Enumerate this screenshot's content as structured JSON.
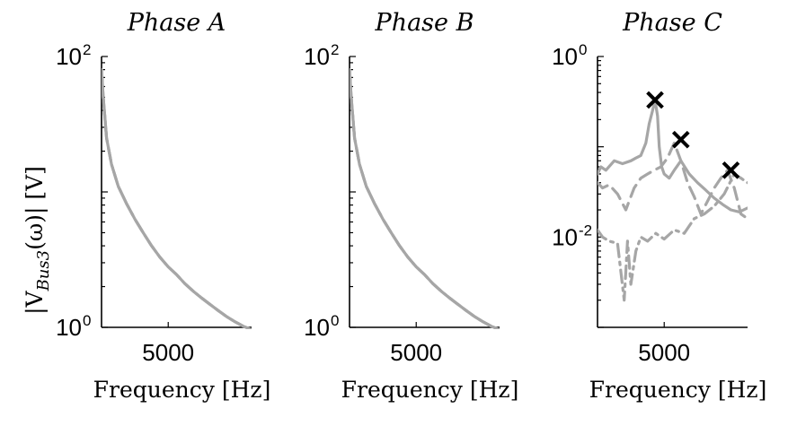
{
  "figure": {
    "ylabel_html": "|V<sub>Bus3</sub>(ω)| [V]",
    "ylabel_main": "|V",
    "ylabel_sub": "Bus3",
    "ylabel_tail": "(ω)|  [V]"
  },
  "colors": {
    "series": "#a6a6a6",
    "marker": "#000000"
  },
  "chart_data": [
    {
      "type": "line",
      "title": "Phase A",
      "xlabel": "Frequency [Hz]",
      "ylabel": "|V_Bus3(ω)| [V]",
      "yscale": "log",
      "xlim": [
        1000,
        10000
      ],
      "ylim": [
        1,
        100
      ],
      "xticks": [
        5000
      ],
      "xtick_labels": [
        "5000"
      ],
      "yticks": [
        1,
        100
      ],
      "ytick_labels": [
        {
          "base": "10",
          "exp": "0"
        },
        {
          "base": "10",
          "exp": "2"
        }
      ],
      "grid": false,
      "series": [
        {
          "style": "solid",
          "x": [
            1000,
            1100,
            1300,
            1600,
            2000,
            2500,
            3000,
            3500,
            4000,
            4500,
            5000,
            5500,
            6000,
            6500,
            7000,
            7500,
            8000,
            8500,
            9000,
            9500,
            10000
          ],
          "y": [
            80,
            50,
            25,
            16,
            11,
            8.2,
            6.3,
            5.0,
            4.0,
            3.3,
            2.8,
            2.45,
            2.1,
            1.85,
            1.65,
            1.48,
            1.33,
            1.2,
            1.1,
            1.02,
            0.96
          ]
        },
        {
          "style": "dashed",
          "x": [
            1000,
            1100,
            1300,
            1600,
            2000,
            2500,
            3000,
            3500,
            4000,
            4500,
            5000,
            5500,
            6000,
            6500,
            7000,
            7500,
            8000,
            8500,
            9000,
            9500,
            10000
          ],
          "y": [
            80,
            50,
            25,
            16,
            11,
            8.2,
            6.3,
            5.0,
            4.0,
            3.3,
            2.8,
            2.45,
            2.1,
            1.85,
            1.65,
            1.48,
            1.33,
            1.2,
            1.1,
            1.02,
            0.96
          ]
        },
        {
          "style": "dashdot",
          "x": [
            1000,
            1100,
            1300,
            1600,
            2000,
            2500,
            3000,
            3500,
            4000,
            4500,
            5000,
            5500,
            6000,
            6500,
            7000,
            7500,
            8000,
            8500,
            9000,
            9500,
            10000
          ],
          "y": [
            80,
            50,
            25,
            16,
            11,
            8.2,
            6.3,
            5.0,
            4.0,
            3.3,
            2.8,
            2.45,
            2.1,
            1.85,
            1.65,
            1.48,
            1.33,
            1.2,
            1.1,
            1.02,
            0.96
          ]
        }
      ],
      "markers": []
    },
    {
      "type": "line",
      "title": "Phase B",
      "xlabel": "Frequency [Hz]",
      "ylabel": "",
      "yscale": "log",
      "xlim": [
        1000,
        10000
      ],
      "ylim": [
        1,
        100
      ],
      "xticks": [
        5000
      ],
      "xtick_labels": [
        "5000"
      ],
      "yticks": [
        1,
        100
      ],
      "ytick_labels": [
        {
          "base": "10",
          "exp": "0"
        },
        {
          "base": "10",
          "exp": "2"
        }
      ],
      "grid": false,
      "series": [
        {
          "style": "solid",
          "x": [
            1000,
            1100,
            1300,
            1600,
            2000,
            2500,
            3000,
            3500,
            4000,
            4500,
            5000,
            5500,
            6000,
            6500,
            7000,
            7500,
            8000,
            8500,
            9000,
            9500,
            10000
          ],
          "y": [
            80,
            50,
            25,
            16,
            11,
            8.2,
            6.3,
            5.0,
            4.0,
            3.3,
            2.8,
            2.45,
            2.1,
            1.85,
            1.65,
            1.48,
            1.33,
            1.2,
            1.1,
            1.02,
            0.96
          ]
        },
        {
          "style": "dashed",
          "x": [
            1000,
            1100,
            1300,
            1600,
            2000,
            2500,
            3000,
            3500,
            4000,
            4500,
            5000,
            5500,
            6000,
            6500,
            7000,
            7500,
            8000,
            8500,
            9000,
            9500,
            10000
          ],
          "y": [
            80,
            50,
            25,
            16,
            11,
            8.2,
            6.3,
            5.0,
            4.0,
            3.3,
            2.8,
            2.45,
            2.1,
            1.85,
            1.65,
            1.48,
            1.33,
            1.2,
            1.1,
            1.02,
            0.96
          ]
        },
        {
          "style": "dashdot",
          "x": [
            1000,
            1100,
            1300,
            1600,
            2000,
            2500,
            3000,
            3500,
            4000,
            4500,
            5000,
            5500,
            6000,
            6500,
            7000,
            7500,
            8000,
            8500,
            9000,
            9500,
            10000
          ],
          "y": [
            80,
            50,
            25,
            16,
            11,
            8.2,
            6.3,
            5.0,
            4.0,
            3.3,
            2.8,
            2.45,
            2.1,
            1.85,
            1.65,
            1.48,
            1.33,
            1.2,
            1.1,
            1.02,
            0.96
          ]
        }
      ],
      "markers": []
    },
    {
      "type": "line",
      "title": "Phase C",
      "xlabel": "Frequency [Hz]",
      "ylabel": "",
      "yscale": "log",
      "xlim": [
        1000,
        10000
      ],
      "ylim": [
        0.001,
        1
      ],
      "xticks": [
        5000
      ],
      "xtick_labels": [
        "5000"
      ],
      "yticks": [
        0.01,
        1
      ],
      "ytick_labels": [
        {
          "base": "10",
          "exp": "-2"
        },
        {
          "base": "10",
          "exp": "0"
        }
      ],
      "grid": false,
      "series": [
        {
          "style": "solid",
          "x": [
            1000,
            1200,
            1500,
            2000,
            2500,
            3000,
            3300,
            3600,
            3900,
            4100,
            4300,
            4450,
            4600,
            4700,
            4850,
            5000,
            5300,
            5600,
            6000,
            6500,
            7000,
            7500,
            8000,
            8500,
            9000,
            9500,
            10000
          ],
          "y": [
            0.05,
            0.06,
            0.055,
            0.07,
            0.065,
            0.07,
            0.075,
            0.08,
            0.11,
            0.18,
            0.25,
            0.33,
            0.22,
            0.1,
            0.06,
            0.05,
            0.045,
            0.055,
            0.07,
            0.05,
            0.04,
            0.033,
            0.027,
            0.023,
            0.02,
            0.019,
            0.021
          ]
        },
        {
          "style": "dashed",
          "x": [
            1000,
            1300,
            1700,
            2200,
            2700,
            3200,
            3600,
            4000,
            4400,
            4800,
            5200,
            5600,
            6000,
            6400,
            6800,
            7200,
            7600,
            8000,
            8400,
            8800,
            9200,
            9600,
            10000
          ],
          "y": [
            0.04,
            0.035,
            0.038,
            0.03,
            0.02,
            0.035,
            0.045,
            0.05,
            0.055,
            0.06,
            0.075,
            0.11,
            0.07,
            0.04,
            0.028,
            0.018,
            0.025,
            0.035,
            0.045,
            0.055,
            0.035,
            0.018,
            0.016
          ]
        },
        {
          "style": "dashdot",
          "x": [
            1000,
            1300,
            1700,
            2200,
            2600,
            2800,
            3000,
            3300,
            3600,
            4000,
            4500,
            5000,
            5600,
            6200,
            6800,
            7400,
            8000,
            8600,
            9200,
            9600,
            10000
          ],
          "y": [
            0.012,
            0.01,
            0.009,
            0.0085,
            0.002,
            0.009,
            0.003,
            0.007,
            0.01,
            0.009,
            0.011,
            0.0095,
            0.012,
            0.011,
            0.016,
            0.018,
            0.022,
            0.03,
            0.05,
            0.045,
            0.04
          ]
        }
      ],
      "markers": [
        {
          "x": 4450,
          "y": 0.33
        },
        {
          "x": 6000,
          "y": 0.12
        },
        {
          "x": 9000,
          "y": 0.055
        }
      ]
    }
  ]
}
